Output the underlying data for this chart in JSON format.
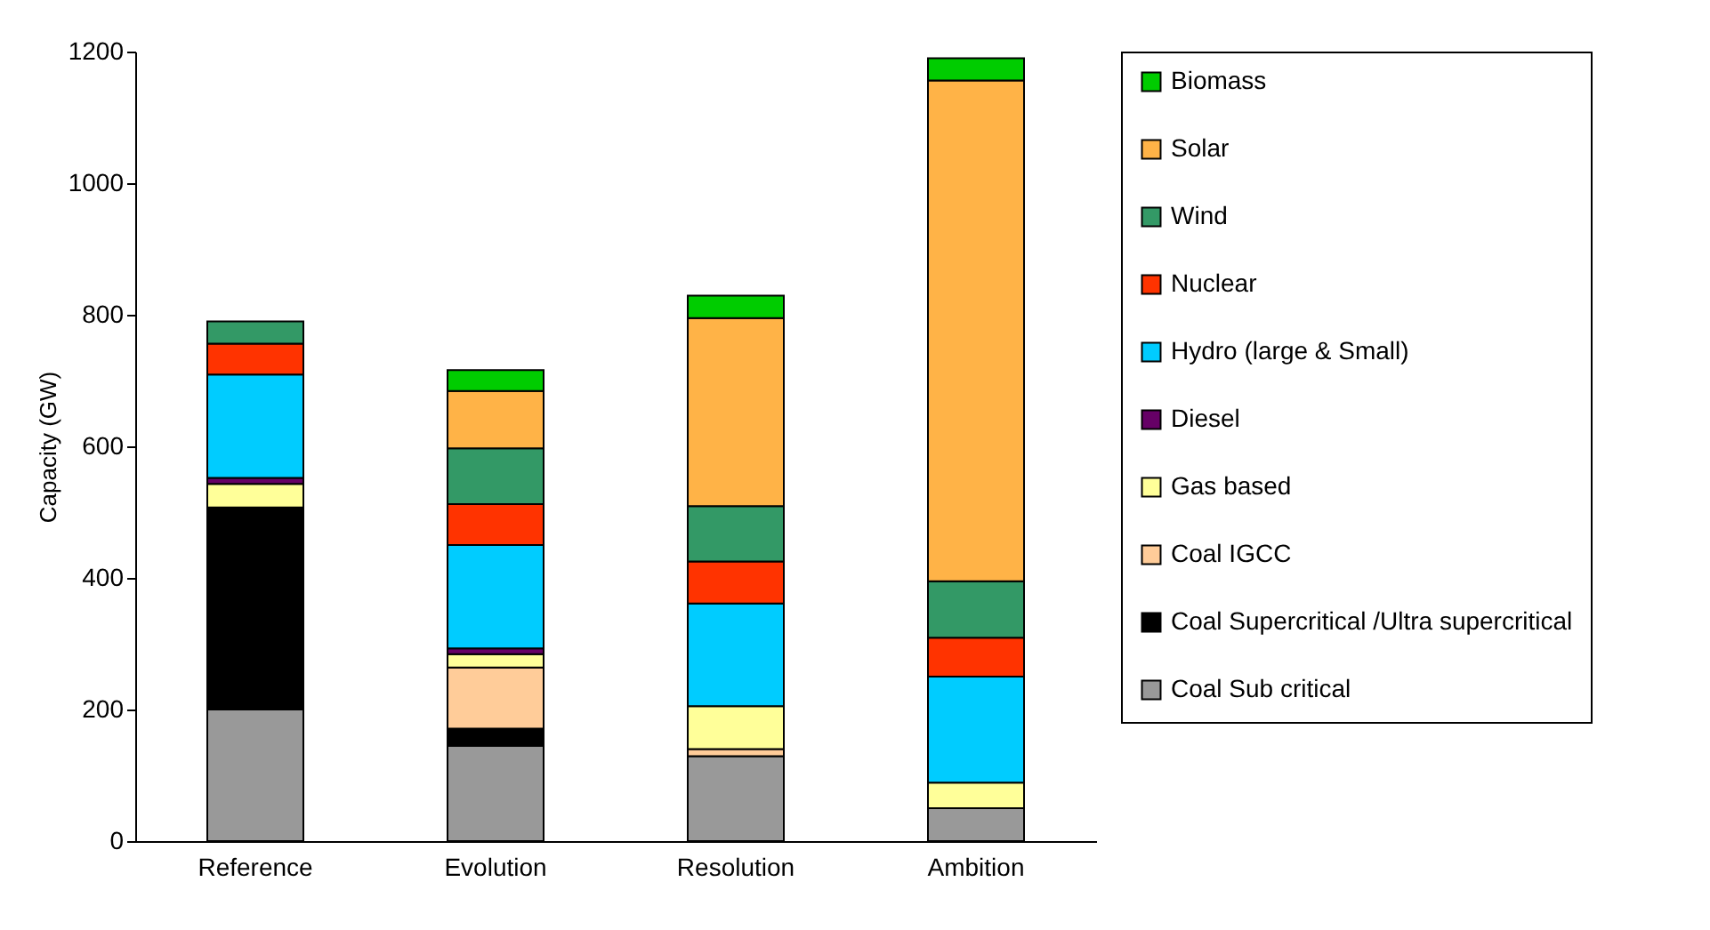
{
  "chart_data": {
    "type": "bar",
    "stacked": true,
    "ylabel": "Capacity (GW)",
    "categories": [
      "Reference",
      "Evolution",
      "Resolution",
      "Ambition"
    ],
    "ylim": [
      0,
      1200
    ],
    "yticks": [
      0,
      200,
      400,
      600,
      800,
      1000,
      1200
    ],
    "grid": false,
    "legend": "right",
    "series": [
      {
        "name": "Coal Sub critical",
        "color": "#999999",
        "values": [
          200,
          145,
          129,
          50
        ]
      },
      {
        "name": "Coal Supercritical /Ultra supercritical",
        "color": "#000000",
        "values": [
          307,
          26,
          null,
          null
        ]
      },
      {
        "name": "Coal IGCC",
        "color": "#ffcc99",
        "values": [
          null,
          93,
          11,
          null
        ]
      },
      {
        "name": "Gas based",
        "color": "#ffff99",
        "values": [
          36,
          20,
          65,
          39
        ]
      },
      {
        "name": "Diesel",
        "color": "#660066",
        "values": [
          9,
          9,
          null,
          null
        ]
      },
      {
        "name": "Hydro (large & Small)",
        "color": "#00ccff",
        "values": [
          157,
          157,
          156,
          161
        ]
      },
      {
        "name": "Nuclear",
        "color": "#ff3300",
        "values": [
          47,
          62,
          64,
          59
        ]
      },
      {
        "name": "Wind",
        "color": "#339966",
        "values": [
          34,
          85,
          84,
          86
        ]
      },
      {
        "name": "Solar",
        "color": "#ffb347",
        "values": [
          null,
          87,
          286,
          761
        ]
      },
      {
        "name": "Biomass",
        "color": "#00cc00",
        "values": [
          null,
          32,
          34,
          34
        ]
      }
    ]
  }
}
